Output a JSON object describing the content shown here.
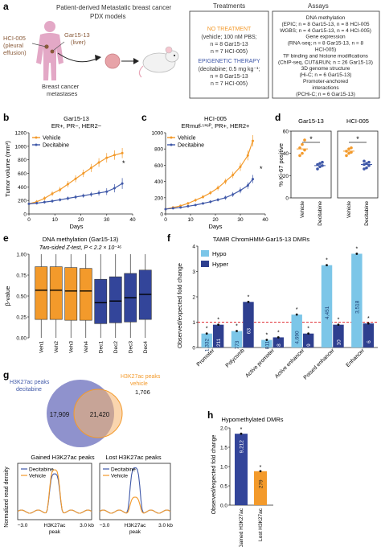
{
  "panel_a": {
    "letter": "a",
    "pdx_title_1": "Patient-derived Metastatic breast cancer",
    "pdx_title_2": "PDX models",
    "hci_label_1": "HCI-005",
    "hci_label_2": "(pleural",
    "hci_label_3": "effusion)",
    "gar_label_1": "Gar15-13",
    "gar_label_2": "(liver)",
    "bc_label_1": "Breast cancer",
    "bc_label_2": "metastases",
    "treatments_header": "Treatments",
    "no_treatment_title": "NO TREATMENT",
    "no_treatment_lines": [
      "(vehicle; 100 nM PBS;",
      "n = 8 Gar15-13",
      "n = 7 HCI-005)"
    ],
    "epi_title": "EPIGENETIC THERAPY",
    "epi_lines": [
      "(decitabine; 0.5 mg kg⁻¹;",
      "n = 8 Gar15-13",
      "n = 7 HCI-005)"
    ],
    "assays_header": "Assays",
    "assay_lines": [
      "DNA methylation",
      "(EPIC; n = 8 Gar15-13, n = 8 HCI-005",
      "WGBS; n = 4 Gar15-13, n = 4 HCI-005)",
      "Gene expression",
      "(RNA-seq; n = 8 Gar15-13, n = 8",
      "HCI-005)",
      "TF binding and histone modifications",
      "(ChIP-seq, CUT&RUN; n = 26 Gar15-13)",
      "3D genome structure",
      "(Hi-C; n = 6 Gar15-13)",
      "Promoter-anchored",
      "interactions",
      "(PCHi-C; n = 6 Gar15-13)"
    ]
  },
  "panel_b": {
    "letter": "b",
    "title_1": "Gar15-13",
    "title_2": "ER+, PR−, HER2−",
    "ylabel": "Tumor volume (mm³)",
    "xlabel": "Days",
    "legend": [
      "Vehicle",
      "Decitabine"
    ],
    "star": "*"
  },
  "panel_c": {
    "letter": "c",
    "title_1": "HCI-005",
    "title_2": "ERmutᴸ⁵³⁶ᴾ, PR+, HER2+",
    "xlabel": "Days",
    "legend": [
      "Vehicle",
      "Decitabine"
    ],
    "star": "*"
  },
  "panel_d": {
    "letter": "d",
    "titles": [
      "Gar15-13",
      "HCI-005"
    ],
    "ylabel": "% Ki-67 positive",
    "xcats": [
      "Vehicle",
      "Decitabine"
    ],
    "star": "*"
  },
  "panel_e": {
    "letter": "e",
    "title_1": "DNA methylation (Gar15-13)",
    "title_2": "Two-sided Z-test, P < 2.2 × 10⁻¹⁶",
    "ylabel": "β-value"
  },
  "panel_f": {
    "letter": "f",
    "title": "TAMR ChromHMM-Gar15-13 DMRs",
    "ylabel": "Observed/expected fold change",
    "legend": [
      "Hypo",
      "Hyper"
    ]
  },
  "panel_g": {
    "letter": "g",
    "venn_left_1": "H3K27ac peaks",
    "venn_left_2": "decitabine",
    "venn_right_1": "H3K27ac peaks",
    "venn_right_2": "vehicle",
    "venn_left_count": "17,909",
    "venn_overlap_count": "21,420",
    "venn_right_count": "1,706",
    "profile_titles": [
      "Gained H3K27ac peaks",
      "Lost H3K27ac peaks"
    ],
    "profile_legend": [
      "Decitabine",
      "Vehicle"
    ],
    "profile_ylabel": "Normalized read density",
    "profile_xticks": [
      "−3.0",
      "H3K27ac",
      "3.0 kb"
    ],
    "profile_xsub": "peak"
  },
  "panel_h": {
    "letter": "h",
    "title": "Hypomethylated DMRs",
    "ylabel": "Observed/expected fold change"
  },
  "colors": {
    "vehicle": "#f39a2b",
    "decitabine": "#3f58a8",
    "hypo": "#7cc6e8",
    "hyper": "#2e3f8f",
    "dark_blue": "#33459a",
    "venn_blue": "#7b7fc4",
    "venn_orange": "#f6b26b"
  },
  "chart_data": [
    {
      "id": "b",
      "type": "line",
      "title": "Gar15-13",
      "xlabel": "Days",
      "ylabel": "Tumor volume (mm³)",
      "xlim": [
        0,
        40
      ],
      "ylim": [
        0,
        1200
      ],
      "xticks": [
        0,
        10,
        20,
        30,
        40
      ],
      "yticks": [
        0,
        200,
        400,
        600,
        800,
        1000,
        1200
      ],
      "series": [
        {
          "name": "Vehicle",
          "x": [
            0,
            3,
            6,
            9,
            12,
            15,
            18,
            21,
            24,
            27,
            30,
            33,
            36
          ],
          "y": [
            150,
            180,
            230,
            300,
            360,
            440,
            520,
            600,
            680,
            760,
            830,
            870,
            900
          ],
          "err": [
            20,
            25,
            30,
            35,
            40,
            45,
            50,
            55,
            60,
            65,
            70,
            70,
            75
          ]
        },
        {
          "name": "Decitabine",
          "x": [
            0,
            3,
            6,
            9,
            12,
            15,
            18,
            21,
            24,
            27,
            30,
            33,
            36
          ],
          "y": [
            150,
            160,
            175,
            190,
            210,
            230,
            250,
            270,
            290,
            310,
            330,
            380,
            450
          ],
          "err": [
            20,
            20,
            22,
            25,
            25,
            28,
            30,
            30,
            35,
            40,
            50,
            60,
            80
          ]
        }
      ]
    },
    {
      "id": "c",
      "type": "line",
      "title": "HCI-005",
      "xlabel": "Days",
      "ylabel": "",
      "xlim": [
        0,
        40
      ],
      "ylim": [
        0,
        1000
      ],
      "xticks": [
        0,
        10,
        20,
        30,
        40
      ],
      "yticks": [
        0,
        200,
        400,
        600,
        800,
        1000
      ],
      "series": [
        {
          "name": "Vehicle",
          "x": [
            0,
            3,
            6,
            9,
            12,
            15,
            18,
            21,
            24,
            27,
            30,
            33,
            35
          ],
          "y": [
            60,
            80,
            100,
            130,
            170,
            210,
            260,
            320,
            400,
            480,
            580,
            720,
            900
          ],
          "err": [
            10,
            12,
            15,
            18,
            20,
            22,
            25,
            30,
            35,
            40,
            50,
            60,
            70
          ]
        },
        {
          "name": "Decitabine",
          "x": [
            0,
            3,
            6,
            9,
            12,
            15,
            18,
            21,
            24,
            27,
            30,
            33,
            35
          ],
          "y": [
            60,
            70,
            80,
            95,
            110,
            130,
            150,
            175,
            200,
            240,
            290,
            350,
            430
          ],
          "err": [
            10,
            10,
            12,
            12,
            14,
            15,
            18,
            20,
            25,
            30,
            35,
            40,
            50
          ]
        }
      ]
    },
    {
      "id": "d",
      "type": "scatter",
      "ylabel": "% Ki-67 positive",
      "ylim": [
        0,
        60
      ],
      "yticks": [
        0,
        20,
        40,
        60
      ],
      "groups": [
        {
          "name": "Gar15-13",
          "vehicle": [
            38,
            40,
            43,
            45,
            48,
            52
          ],
          "decitabine": [
            26,
            28,
            29,
            30,
            31,
            32
          ],
          "vehicle_mean": 44,
          "decitabine_mean": 29
        },
        {
          "name": "HCI-005",
          "vehicle": [
            38,
            40,
            41,
            42,
            44,
            45
          ],
          "decitabine": [
            26,
            27,
            29,
            30,
            31,
            32,
            33
          ],
          "decitabine_mean": 30,
          "vehicle_mean": 42
        }
      ]
    },
    {
      "id": "e",
      "type": "box",
      "ylabel": "β-value",
      "ylim": [
        0,
        1.0
      ],
      "yticks": [
        0,
        0.25,
        0.5,
        0.75,
        1.0
      ],
      "categories": [
        "Veh1",
        "Veh2",
        "Veh3",
        "Veh4",
        "Dec1",
        "Dec2",
        "Dec3",
        "Dec4"
      ],
      "median": [
        0.57,
        0.57,
        0.56,
        0.56,
        0.42,
        0.44,
        0.48,
        0.52
      ],
      "q1": [
        0.22,
        0.22,
        0.21,
        0.21,
        0.17,
        0.18,
        0.19,
        0.22
      ],
      "q3": [
        0.85,
        0.85,
        0.84,
        0.83,
        0.7,
        0.73,
        0.77,
        0.81
      ],
      "group": [
        "Vehicle",
        "Vehicle",
        "Vehicle",
        "Vehicle",
        "Decitabine",
        "Decitabine",
        "Decitabine",
        "Decitabine"
      ]
    },
    {
      "id": "f",
      "type": "bar",
      "ylabel": "Observed/expected fold change",
      "ylim": [
        0,
        4
      ],
      "yticks": [
        0,
        1,
        2,
        3,
        4
      ],
      "categories": [
        "Promoter",
        "Polycomb",
        "Active promoter",
        "Active enhancer",
        "Poised enhancer",
        "Enhancer"
      ],
      "series": [
        {
          "name": "Hypo",
          "values": [
            0.55,
            0.65,
            0.3,
            1.3,
            3.25,
            3.7
          ],
          "labels": [
            "1,332",
            "773",
            "811",
            "4,690",
            "4,451",
            "3,518"
          ]
        },
        {
          "name": "Hyper",
          "values": [
            0.9,
            1.8,
            0.4,
            0.55,
            0.9,
            0.95
          ],
          "labels": [
            "211",
            "63",
            "8",
            "9",
            "10",
            "6"
          ]
        }
      ],
      "reference_line": 1
    },
    {
      "id": "h",
      "type": "bar",
      "ylabel": "Observed/expected fold change",
      "ylim": [
        0,
        2
      ],
      "yticks": [
        0,
        0.5,
        1.0,
        1.5,
        2.0
      ],
      "categories": [
        "Gained H3K27ac",
        "Lost H3K27ac"
      ],
      "values": [
        1.85,
        0.88
      ],
      "labels": [
        "9,212",
        "279"
      ]
    },
    {
      "id": "g_profiles",
      "type": "line",
      "ylabel": "Normalized read density",
      "series_names": [
        "Decitabine",
        "Vehicle"
      ]
    }
  ]
}
